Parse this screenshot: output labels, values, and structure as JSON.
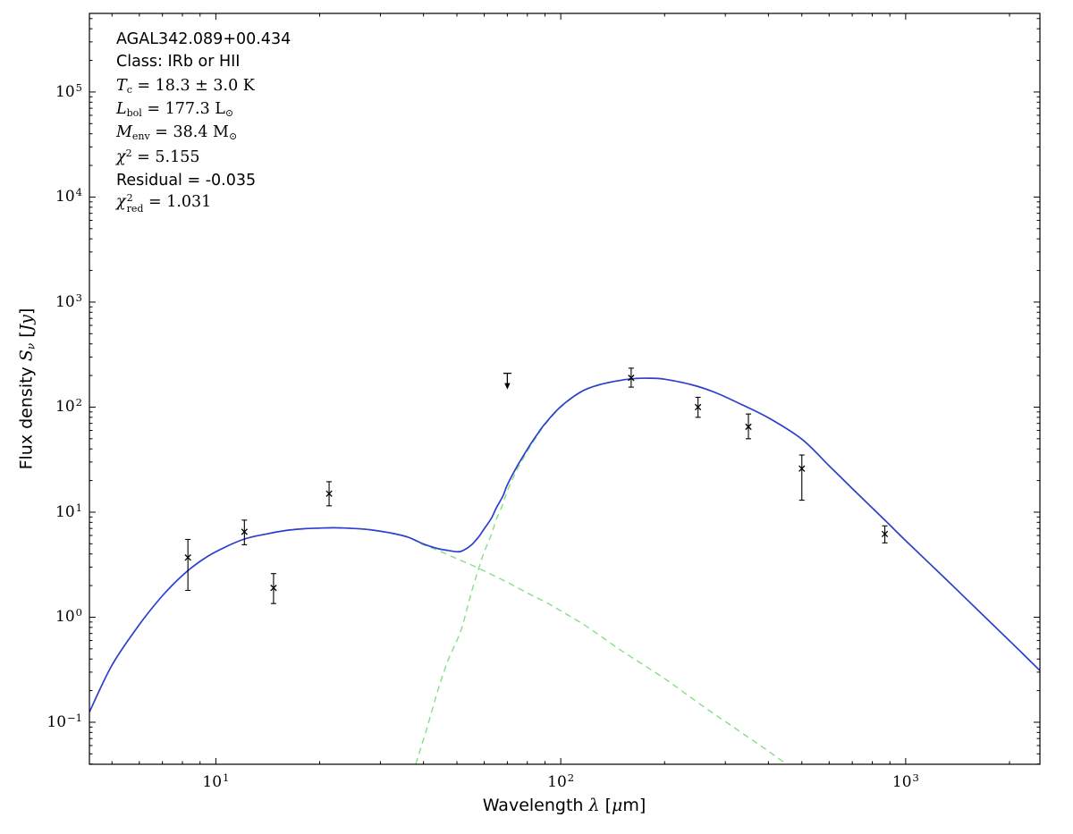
{
  "annotation": {
    "source": "AGAL342.089+00.434",
    "class_line": "Class: IRb or HII",
    "tc": {
      "sym": "T",
      "sub": "c",
      "rest": " = 18.3 ± 3.0 K"
    },
    "lbol": {
      "sym": "L",
      "sub": "bol",
      "rest": " = 177.3 L",
      "unit_sub": "⊙"
    },
    "menv": {
      "sym": "M",
      "sub": "env",
      "rest": " = 38.4 M",
      "unit_sub": "⊙"
    },
    "chi2": {
      "sym": "χ",
      "sup": "2",
      "rest": " = 5.155"
    },
    "residual": "Residual = -0.035",
    "chi2red": {
      "sym": "χ",
      "sup": "2",
      "sub": "red",
      "rest": " = 1.031"
    }
  },
  "axes_labels": {
    "xlabel": {
      "pre": "Wavelength ",
      "lambda": "λ",
      "mid": " [",
      "mu": "μ",
      "post": "m]"
    },
    "ylabel": {
      "pre": "Flux density ",
      "s": "S",
      "nu": "ν",
      "mid": " [",
      "jy": "Jy",
      "post": "]"
    }
  },
  "chart_data": {
    "type": "line",
    "title": "",
    "xlabel": "Wavelength λ [μm]",
    "ylabel": "Flux density S_ν [Jy]",
    "x_axis": {
      "scale": "log",
      "min": 4.3,
      "max": 2450,
      "majors": [
        10,
        100,
        1000
      ],
      "labels": [
        "10^1",
        "10^2",
        "10^3"
      ]
    },
    "y_axis": {
      "scale": "log",
      "min": 0.0398,
      "max": 560000,
      "majors": [
        0.1,
        1,
        10,
        100,
        1000,
        10000,
        100000
      ],
      "labels": [
        "10^-1",
        "10^0",
        "10^1",
        "10^2",
        "10^3",
        "10^4",
        "10^5"
      ]
    },
    "frame_color": "#000000",
    "marker_color": "#000000",
    "series": [
      {
        "name": "warm-component",
        "color": "#86df86",
        "dash": "7 5",
        "width": 1.4,
        "points": [
          [
            4.3,
            0.125
          ],
          [
            5,
            0.35
          ],
          [
            6,
            0.85
          ],
          [
            7,
            1.6
          ],
          [
            8,
            2.5
          ],
          [
            9,
            3.4
          ],
          [
            10,
            4.2
          ],
          [
            12,
            5.5
          ],
          [
            14,
            6.2
          ],
          [
            16,
            6.7
          ],
          [
            18,
            6.95
          ],
          [
            20,
            7.05
          ],
          [
            22,
            7.1
          ],
          [
            25,
            7.0
          ],
          [
            28,
            6.8
          ],
          [
            32,
            6.35
          ],
          [
            36,
            5.8
          ],
          [
            40,
            4.9
          ],
          [
            45,
            4.2
          ],
          [
            50,
            3.6
          ],
          [
            55,
            3.15
          ],
          [
            60,
            2.75
          ],
          [
            70,
            2.15
          ],
          [
            80,
            1.7
          ],
          [
            90,
            1.4
          ],
          [
            100,
            1.15
          ],
          [
            120,
            0.8
          ],
          [
            150,
            0.48
          ],
          [
            200,
            0.26
          ],
          [
            260,
            0.14
          ],
          [
            330,
            0.082
          ],
          [
            400,
            0.053
          ],
          [
            450,
            0.04
          ],
          [
            520,
            0.027
          ]
        ]
      },
      {
        "name": "cold-component",
        "color": "#86df86",
        "dash": "7 5",
        "width": 1.4,
        "points": [
          [
            38,
            0.04
          ],
          [
            41,
            0.09
          ],
          [
            44,
            0.2
          ],
          [
            47,
            0.38
          ],
          [
            50,
            0.6
          ],
          [
            52,
            0.85
          ],
          [
            55,
            1.7
          ],
          [
            58,
            3.0
          ],
          [
            60,
            4.2
          ],
          [
            63,
            6.2
          ],
          [
            65,
            8.5
          ],
          [
            68,
            12
          ],
          [
            70,
            16
          ],
          [
            75,
            26
          ],
          [
            80,
            38
          ],
          [
            85,
            52
          ],
          [
            90,
            68
          ],
          [
            100,
            100
          ],
          [
            115,
            140
          ],
          [
            130,
            163
          ],
          [
            150,
            180
          ],
          [
            165,
            187
          ],
          [
            180,
            188
          ],
          [
            200,
            184
          ],
          [
            240,
            163
          ],
          [
            280,
            138
          ],
          [
            330,
            108
          ],
          [
            400,
            79
          ],
          [
            500,
            49.5
          ],
          [
            600,
            27.6
          ],
          [
            700,
            16.8
          ],
          [
            870,
            8.4
          ],
          [
            1000,
            5.35
          ],
          [
            1300,
            2.35
          ],
          [
            1700,
            1.0
          ],
          [
            2100,
            0.51
          ],
          [
            2450,
            0.31
          ]
        ]
      },
      {
        "name": "model-total",
        "color": "#2e3ecf",
        "dash": "none",
        "width": 1.7,
        "points": [
          [
            4.3,
            0.125
          ],
          [
            5,
            0.35
          ],
          [
            6,
            0.85
          ],
          [
            7,
            1.6
          ],
          [
            8,
            2.5
          ],
          [
            9,
            3.4
          ],
          [
            10,
            4.2
          ],
          [
            12,
            5.5
          ],
          [
            14,
            6.2
          ],
          [
            16,
            6.7
          ],
          [
            18,
            6.95
          ],
          [
            20,
            7.05
          ],
          [
            22,
            7.1
          ],
          [
            25,
            7.0
          ],
          [
            28,
            6.8
          ],
          [
            32,
            6.35
          ],
          [
            36,
            5.8
          ],
          [
            40,
            4.97
          ],
          [
            44,
            4.5
          ],
          [
            47,
            4.33
          ],
          [
            50,
            4.2
          ],
          [
            52,
            4.3
          ],
          [
            55,
            4.85
          ],
          [
            58,
            5.9
          ],
          [
            60,
            6.95
          ],
          [
            63,
            8.8
          ],
          [
            65,
            10.95
          ],
          [
            68,
            14.3
          ],
          [
            70,
            18.2
          ],
          [
            75,
            27.9
          ],
          [
            80,
            39.7
          ],
          [
            85,
            53.6
          ],
          [
            90,
            69.4
          ],
          [
            100,
            101
          ],
          [
            115,
            141
          ],
          [
            130,
            164
          ],
          [
            150,
            180.6
          ],
          [
            165,
            187.4
          ],
          [
            180,
            188.5
          ],
          [
            200,
            184.3
          ],
          [
            240,
            163.2
          ],
          [
            280,
            138.1
          ],
          [
            330,
            108.1
          ],
          [
            400,
            79.1
          ],
          [
            500,
            49.5
          ],
          [
            600,
            27.6
          ],
          [
            700,
            16.8
          ],
          [
            870,
            8.4
          ],
          [
            1000,
            5.35
          ],
          [
            1300,
            2.35
          ],
          [
            1700,
            1.0
          ],
          [
            2100,
            0.51
          ],
          [
            2450,
            0.31
          ]
        ]
      }
    ],
    "data_points": [
      {
        "x": 8.3,
        "y": 3.7,
        "lo": 1.8,
        "hi": 5.5
      },
      {
        "x": 12.1,
        "y": 6.5,
        "lo": 4.9,
        "hi": 8.4
      },
      {
        "x": 14.7,
        "y": 1.9,
        "lo": 1.35,
        "hi": 2.6
      },
      {
        "x": 21.3,
        "y": 15,
        "lo": 11.5,
        "hi": 19.5
      },
      {
        "x": 160,
        "y": 190,
        "lo": 155,
        "hi": 235
      },
      {
        "x": 250,
        "y": 100,
        "lo": 80,
        "hi": 124
      },
      {
        "x": 350,
        "y": 65,
        "lo": 50,
        "hi": 86
      },
      {
        "x": 500,
        "y": 26,
        "lo": 13,
        "hi": 35
      },
      {
        "x": 870,
        "y": 6.2,
        "lo": 5.1,
        "hi": 7.4
      }
    ],
    "upper_limits": [
      {
        "x": 70,
        "y": 210
      }
    ]
  }
}
